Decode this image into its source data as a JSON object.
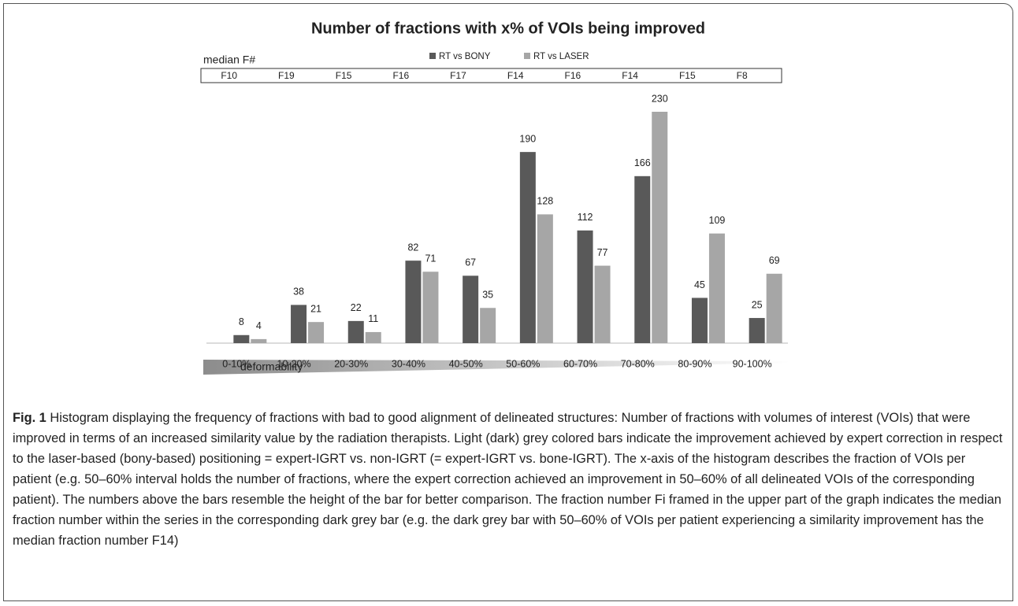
{
  "chart_data": {
    "type": "bar",
    "title": "Number of fractions  with x% of VOIs being improved",
    "categories": [
      "0-10%",
      "10-20%",
      "20-30%",
      "30-40%",
      "40-50%",
      "50-60%",
      "60-70%",
      "70-80%",
      "80-90%",
      "90-100%"
    ],
    "series": [
      {
        "name": "RT vs BONY",
        "color": "#595959",
        "values": [
          8,
          38,
          22,
          82,
          67,
          190,
          112,
          166,
          45,
          25
        ]
      },
      {
        "name": "RT vs LASER",
        "color": "#a6a6a6",
        "values": [
          4,
          21,
          11,
          71,
          35,
          128,
          77,
          230,
          109,
          69
        ]
      }
    ],
    "median_label": "median F#",
    "median_fractions": [
      "F10",
      "F19",
      "F15",
      "F16",
      "F17",
      "F14",
      "F16",
      "F14",
      "F15",
      "F8"
    ],
    "gradient_label": "deformability"
  },
  "caption": {
    "label": "Fig. 1",
    "text": "Histogram displaying the frequency of fractions with bad to good alignment of delineated structures: Number of fractions with volumes of interest (VOIs) that were improved in terms of an increased similarity value by the radiation therapists. Light (dark) grey colored bars indicate the improvement achieved by expert correction in respect to the laser-based (bony-based) positioning = expert-IGRT vs. non-IGRT (= expert-IGRT vs. bone-IGRT). The x-axis of the histogram describes the fraction of VOIs per patient (e.g. 50–60% interval holds the number of fractions, where the expert correction achieved an improvement in 50–60% of all delineated VOIs of the corresponding patient). The numbers above the bars resemble the height of the bar for better comparison. The fraction number Fi framed in the upper part of the graph indicates the median fraction number within the series in the corresponding dark grey bar (e.g. the dark grey bar with 50–60% of VOIs per patient experiencing a similarity improvement has the median fraction number F14)"
  }
}
